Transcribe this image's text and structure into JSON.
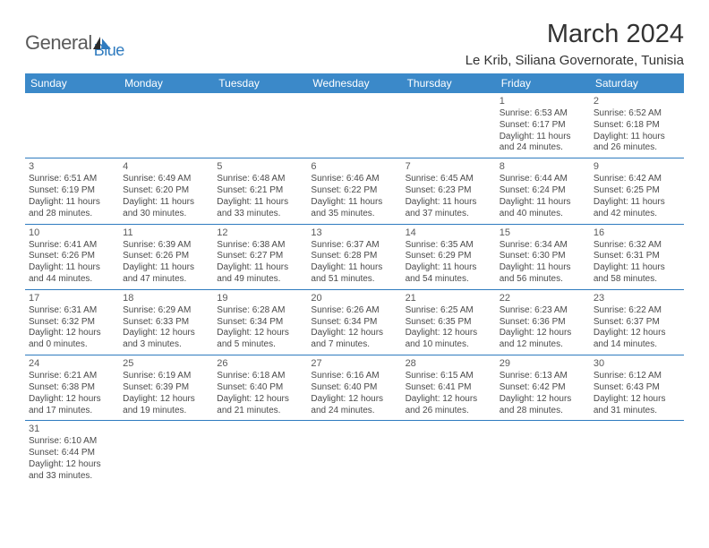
{
  "logo": {
    "text1": "General",
    "text2": "Blue"
  },
  "title": "March 2024",
  "location": "Le Krib, Siliana Governorate, Tunisia",
  "colors": {
    "header_bg": "#3b89c9",
    "header_text": "#ffffff",
    "border": "#2f7bbf",
    "text": "#4a4a4a",
    "title_text": "#333333",
    "logo_gray": "#5a5a5a",
    "logo_blue": "#2f7bbf",
    "background": "#ffffff"
  },
  "day_headers": [
    "Sunday",
    "Monday",
    "Tuesday",
    "Wednesday",
    "Thursday",
    "Friday",
    "Saturday"
  ],
  "weeks": [
    [
      null,
      null,
      null,
      null,
      null,
      {
        "n": "1",
        "sr": "Sunrise: 6:53 AM",
        "ss": "Sunset: 6:17 PM",
        "d1": "Daylight: 11 hours",
        "d2": "and 24 minutes."
      },
      {
        "n": "2",
        "sr": "Sunrise: 6:52 AM",
        "ss": "Sunset: 6:18 PM",
        "d1": "Daylight: 11 hours",
        "d2": "and 26 minutes."
      }
    ],
    [
      {
        "n": "3",
        "sr": "Sunrise: 6:51 AM",
        "ss": "Sunset: 6:19 PM",
        "d1": "Daylight: 11 hours",
        "d2": "and 28 minutes."
      },
      {
        "n": "4",
        "sr": "Sunrise: 6:49 AM",
        "ss": "Sunset: 6:20 PM",
        "d1": "Daylight: 11 hours",
        "d2": "and 30 minutes."
      },
      {
        "n": "5",
        "sr": "Sunrise: 6:48 AM",
        "ss": "Sunset: 6:21 PM",
        "d1": "Daylight: 11 hours",
        "d2": "and 33 minutes."
      },
      {
        "n": "6",
        "sr": "Sunrise: 6:46 AM",
        "ss": "Sunset: 6:22 PM",
        "d1": "Daylight: 11 hours",
        "d2": "and 35 minutes."
      },
      {
        "n": "7",
        "sr": "Sunrise: 6:45 AM",
        "ss": "Sunset: 6:23 PM",
        "d1": "Daylight: 11 hours",
        "d2": "and 37 minutes."
      },
      {
        "n": "8",
        "sr": "Sunrise: 6:44 AM",
        "ss": "Sunset: 6:24 PM",
        "d1": "Daylight: 11 hours",
        "d2": "and 40 minutes."
      },
      {
        "n": "9",
        "sr": "Sunrise: 6:42 AM",
        "ss": "Sunset: 6:25 PM",
        "d1": "Daylight: 11 hours",
        "d2": "and 42 minutes."
      }
    ],
    [
      {
        "n": "10",
        "sr": "Sunrise: 6:41 AM",
        "ss": "Sunset: 6:26 PM",
        "d1": "Daylight: 11 hours",
        "d2": "and 44 minutes."
      },
      {
        "n": "11",
        "sr": "Sunrise: 6:39 AM",
        "ss": "Sunset: 6:26 PM",
        "d1": "Daylight: 11 hours",
        "d2": "and 47 minutes."
      },
      {
        "n": "12",
        "sr": "Sunrise: 6:38 AM",
        "ss": "Sunset: 6:27 PM",
        "d1": "Daylight: 11 hours",
        "d2": "and 49 minutes."
      },
      {
        "n": "13",
        "sr": "Sunrise: 6:37 AM",
        "ss": "Sunset: 6:28 PM",
        "d1": "Daylight: 11 hours",
        "d2": "and 51 minutes."
      },
      {
        "n": "14",
        "sr": "Sunrise: 6:35 AM",
        "ss": "Sunset: 6:29 PM",
        "d1": "Daylight: 11 hours",
        "d2": "and 54 minutes."
      },
      {
        "n": "15",
        "sr": "Sunrise: 6:34 AM",
        "ss": "Sunset: 6:30 PM",
        "d1": "Daylight: 11 hours",
        "d2": "and 56 minutes."
      },
      {
        "n": "16",
        "sr": "Sunrise: 6:32 AM",
        "ss": "Sunset: 6:31 PM",
        "d1": "Daylight: 11 hours",
        "d2": "and 58 minutes."
      }
    ],
    [
      {
        "n": "17",
        "sr": "Sunrise: 6:31 AM",
        "ss": "Sunset: 6:32 PM",
        "d1": "Daylight: 12 hours",
        "d2": "and 0 minutes."
      },
      {
        "n": "18",
        "sr": "Sunrise: 6:29 AM",
        "ss": "Sunset: 6:33 PM",
        "d1": "Daylight: 12 hours",
        "d2": "and 3 minutes."
      },
      {
        "n": "19",
        "sr": "Sunrise: 6:28 AM",
        "ss": "Sunset: 6:34 PM",
        "d1": "Daylight: 12 hours",
        "d2": "and 5 minutes."
      },
      {
        "n": "20",
        "sr": "Sunrise: 6:26 AM",
        "ss": "Sunset: 6:34 PM",
        "d1": "Daylight: 12 hours",
        "d2": "and 7 minutes."
      },
      {
        "n": "21",
        "sr": "Sunrise: 6:25 AM",
        "ss": "Sunset: 6:35 PM",
        "d1": "Daylight: 12 hours",
        "d2": "and 10 minutes."
      },
      {
        "n": "22",
        "sr": "Sunrise: 6:23 AM",
        "ss": "Sunset: 6:36 PM",
        "d1": "Daylight: 12 hours",
        "d2": "and 12 minutes."
      },
      {
        "n": "23",
        "sr": "Sunrise: 6:22 AM",
        "ss": "Sunset: 6:37 PM",
        "d1": "Daylight: 12 hours",
        "d2": "and 14 minutes."
      }
    ],
    [
      {
        "n": "24",
        "sr": "Sunrise: 6:21 AM",
        "ss": "Sunset: 6:38 PM",
        "d1": "Daylight: 12 hours",
        "d2": "and 17 minutes."
      },
      {
        "n": "25",
        "sr": "Sunrise: 6:19 AM",
        "ss": "Sunset: 6:39 PM",
        "d1": "Daylight: 12 hours",
        "d2": "and 19 minutes."
      },
      {
        "n": "26",
        "sr": "Sunrise: 6:18 AM",
        "ss": "Sunset: 6:40 PM",
        "d1": "Daylight: 12 hours",
        "d2": "and 21 minutes."
      },
      {
        "n": "27",
        "sr": "Sunrise: 6:16 AM",
        "ss": "Sunset: 6:40 PM",
        "d1": "Daylight: 12 hours",
        "d2": "and 24 minutes."
      },
      {
        "n": "28",
        "sr": "Sunrise: 6:15 AM",
        "ss": "Sunset: 6:41 PM",
        "d1": "Daylight: 12 hours",
        "d2": "and 26 minutes."
      },
      {
        "n": "29",
        "sr": "Sunrise: 6:13 AM",
        "ss": "Sunset: 6:42 PM",
        "d1": "Daylight: 12 hours",
        "d2": "and 28 minutes."
      },
      {
        "n": "30",
        "sr": "Sunrise: 6:12 AM",
        "ss": "Sunset: 6:43 PM",
        "d1": "Daylight: 12 hours",
        "d2": "and 31 minutes."
      }
    ],
    [
      {
        "n": "31",
        "sr": "Sunrise: 6:10 AM",
        "ss": "Sunset: 6:44 PM",
        "d1": "Daylight: 12 hours",
        "d2": "and 33 minutes."
      },
      null,
      null,
      null,
      null,
      null,
      null
    ]
  ]
}
